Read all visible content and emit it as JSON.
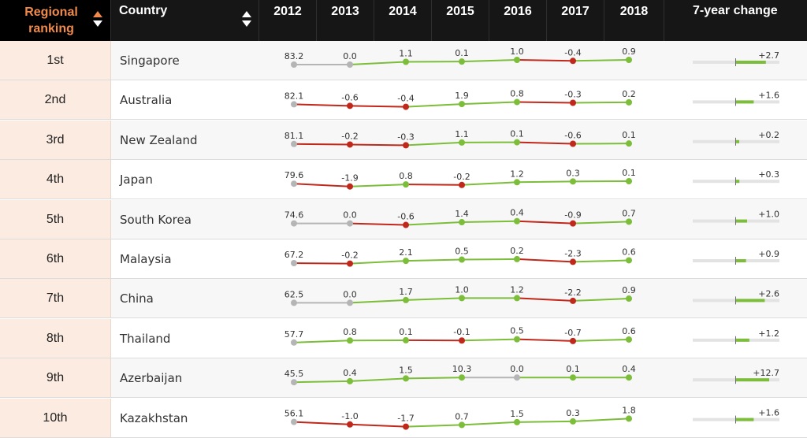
{
  "header": {
    "rank_label": "Regional ranking",
    "country_label": "Country",
    "years": [
      "2012",
      "2013",
      "2014",
      "2015",
      "2016",
      "2017",
      "2018"
    ],
    "change_label": "7-year change"
  },
  "colors": {
    "positive": "#7cbd3a",
    "negative": "#c0281b",
    "neutral": "#b5b5b5",
    "rank_accent": "#f08a4b",
    "change_track": "#e3e3e3"
  },
  "chart_data": {
    "type": "table",
    "columns": [
      "Regional ranking",
      "Country",
      "2012",
      "2013",
      "2014",
      "2015",
      "2016",
      "2017",
      "2018",
      "7-year change"
    ],
    "rows": [
      {
        "rank": "1st",
        "country": "Singapore",
        "labels": [
          "83.2",
          "0.0",
          "1.1",
          "0.1",
          "1.0",
          "-0.4",
          "0.9"
        ],
        "values": [
          83.2,
          0.0,
          1.1,
          0.1,
          1.0,
          -0.4,
          0.9
        ],
        "change_label": "+2.7",
        "change": 2.7
      },
      {
        "rank": "2nd",
        "country": "Australia",
        "labels": [
          "82.1",
          "-0.6",
          "-0.4",
          "1.9",
          "0.8",
          "-0.3",
          "0.2"
        ],
        "values": [
          82.1,
          -0.6,
          -0.4,
          1.9,
          0.8,
          -0.3,
          0.2
        ],
        "change_label": "+1.6",
        "change": 1.6
      },
      {
        "rank": "3rd",
        "country": "New Zealand",
        "labels": [
          "81.1",
          "-0.2",
          "-0.3",
          "1.1",
          "0.1",
          "-0.6",
          "0.1"
        ],
        "values": [
          81.1,
          -0.2,
          -0.3,
          1.1,
          0.1,
          -0.6,
          0.1
        ],
        "change_label": "+0.2",
        "change": 0.2
      },
      {
        "rank": "4th",
        "country": "Japan",
        "labels": [
          "79.6",
          "-1.9",
          "0.8",
          "-0.2",
          "1.2",
          "0.3",
          "0.1"
        ],
        "values": [
          79.6,
          -1.9,
          0.8,
          -0.2,
          1.2,
          0.3,
          0.1
        ],
        "change_label": "+0.3",
        "change": 0.3
      },
      {
        "rank": "5th",
        "country": "South Korea",
        "labels": [
          "74.6",
          "0.0",
          "-0.6",
          "1.4",
          "0.4",
          "-0.9",
          "0.7"
        ],
        "values": [
          74.6,
          0.0,
          -0.6,
          1.4,
          0.4,
          -0.9,
          0.7
        ],
        "change_label": "+1.0",
        "change": 1.0
      },
      {
        "rank": "6th",
        "country": "Malaysia",
        "labels": [
          "67.2",
          "-0.2",
          "2.1",
          "0.5",
          "0.2",
          "-2.3",
          "0.6"
        ],
        "values": [
          67.2,
          -0.2,
          2.1,
          0.5,
          0.2,
          -2.3,
          0.6
        ],
        "change_label": "+0.9",
        "change": 0.9
      },
      {
        "rank": "7th",
        "country": "China",
        "labels": [
          "62.5",
          "0.0",
          "1.7",
          "1.0",
          "1.2",
          "-2.2",
          "0.9"
        ],
        "values": [
          62.5,
          0.0,
          1.7,
          1.0,
          1.2,
          -2.2,
          0.9
        ],
        "change_label": "+2.6",
        "change": 2.6
      },
      {
        "rank": "8th",
        "country": "Thailand",
        "labels": [
          "57.7",
          "0.8",
          "0.1",
          "-0.1",
          "0.5",
          "-0.7",
          "0.6"
        ],
        "values": [
          57.7,
          0.8,
          0.1,
          -0.1,
          0.5,
          -0.7,
          0.6
        ],
        "change_label": "+1.2",
        "change": 1.2
      },
      {
        "rank": "9th",
        "country": "Azerbaijan",
        "labels": [
          "45.5",
          "0.4",
          "1.5",
          "10.3",
          "0.0",
          "0.1",
          "0.4"
        ],
        "values": [
          45.5,
          0.4,
          1.5,
          10.3,
          0.0,
          0.1,
          0.4
        ],
        "change_label": "+12.7",
        "change": 12.7
      },
      {
        "rank": "10th",
        "country": "Kazakhstan",
        "labels": [
          "56.1",
          "-1.0",
          "-1.7",
          "0.7",
          "1.5",
          "0.3",
          "1.8"
        ],
        "values": [
          56.1,
          -1.0,
          -1.7,
          0.7,
          1.5,
          0.3,
          1.8
        ],
        "change_label": "+1.6",
        "change": 1.6
      }
    ]
  }
}
